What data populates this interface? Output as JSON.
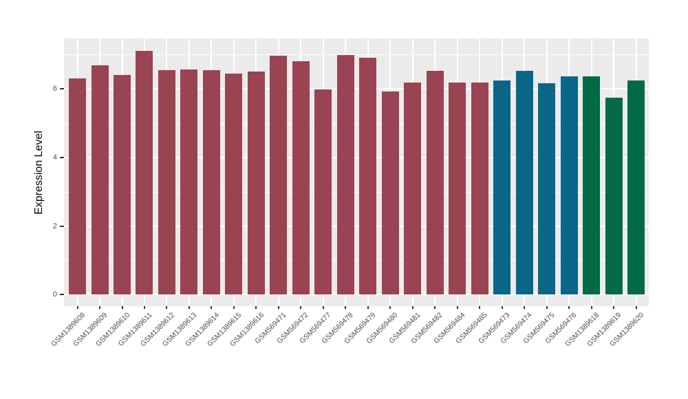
{
  "figure": {
    "background": "#FFFFFF",
    "panel_background": "#EBEBEB",
    "gridline_color": "#FFFFFF",
    "tick_color": "#333333",
    "tick_label_color": "#4D4D4D",
    "axis_title_color": "#000000"
  },
  "chart_data": {
    "type": "bar",
    "title": "",
    "xlabel": "",
    "ylabel": "Expression Level",
    "legend_position": "none",
    "grid": "horizontal major at 0/2/4/6, horizontal minor at 1/3/5/7, vertical major at each category",
    "ylim": [
      -0.35,
      7.45
    ],
    "ytick_labels": [
      "0",
      "2",
      "4",
      "6"
    ],
    "ytick_values": [
      0,
      2,
      4,
      6
    ],
    "ytick_minor_values": [
      1,
      3,
      5,
      7
    ],
    "categories": [
      "GSM1389608",
      "GSM1389609",
      "GSM1389610",
      "GSM1389611",
      "GSM1389612",
      "GSM1389613",
      "GSM1389614",
      "GSM1389615",
      "GSM1389616",
      "GSM569471",
      "GSM569472",
      "GSM569477",
      "GSM569478",
      "GSM569479",
      "GSM569480",
      "GSM569481",
      "GSM569482",
      "GSM569484",
      "GSM569485",
      "GSM569473",
      "GSM569474",
      "GSM569475",
      "GSM569476",
      "GSM1389618",
      "GSM1389619",
      "GSM1389620"
    ],
    "values": [
      6.3,
      6.68,
      6.4,
      7.1,
      6.54,
      6.56,
      6.54,
      6.44,
      6.49,
      6.97,
      6.81,
      5.97,
      6.99,
      6.91,
      5.92,
      6.18,
      6.53,
      6.17,
      6.18,
      6.23,
      6.53,
      6.16,
      6.35,
      6.36,
      5.74,
      6.23
    ],
    "group_colors": [
      "#9A4352",
      "#0A6687",
      "#006A46"
    ],
    "bar_color_group": [
      0,
      0,
      0,
      0,
      0,
      0,
      0,
      0,
      0,
      0,
      0,
      0,
      0,
      0,
      0,
      0,
      0,
      0,
      0,
      1,
      1,
      1,
      1,
      2,
      2,
      2
    ]
  }
}
